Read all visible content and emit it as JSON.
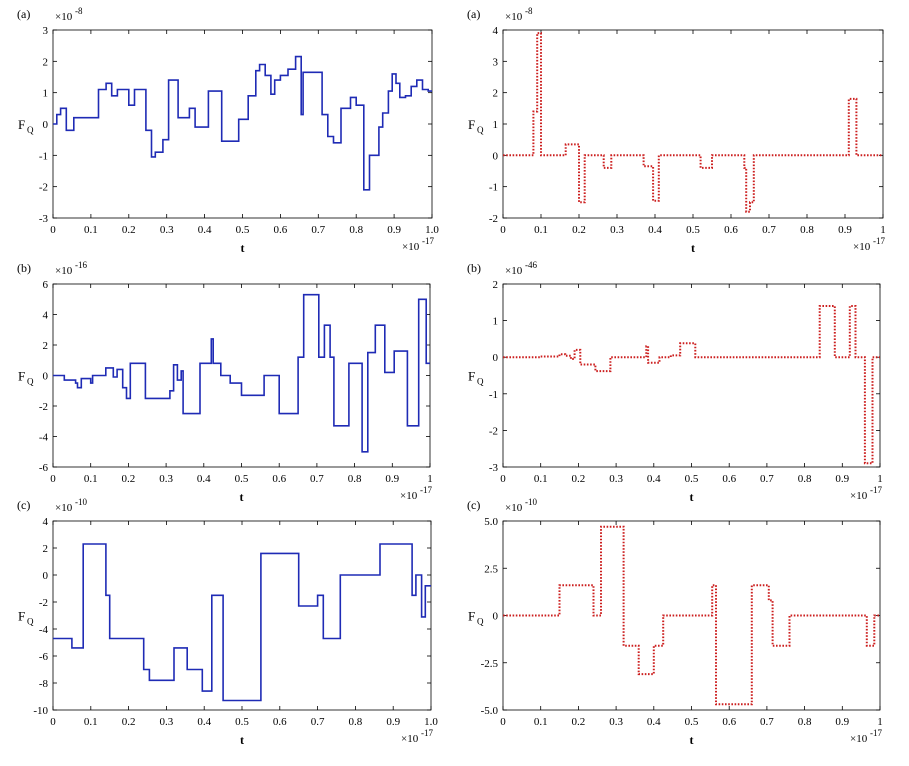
{
  "chart_data": [
    {
      "type": "line",
      "panel_label": "(a)",
      "ylabel": "F",
      "ylabel_sub": "Q",
      "xlabel": "t",
      "x_exponent": "×10",
      "x_exponent_power": "-17",
      "y_exponent": "×10",
      "y_exponent_power": "-8",
      "xlim": [
        0,
        1.0
      ],
      "ylim": [
        -3,
        3
      ],
      "xticks": [
        0,
        0.1,
        0.2,
        0.3,
        0.4,
        0.5,
        0.6,
        0.7,
        0.8,
        0.9,
        1.0
      ],
      "xtick_labels": [
        "0",
        "0.1",
        "0.2",
        "0.3",
        "0.4",
        "0.5",
        "0.6",
        "0.7",
        "0.8",
        "0.9",
        "1.0"
      ],
      "yticks": [
        -3,
        -2,
        -1,
        0,
        1,
        2,
        3
      ],
      "ytick_labels": [
        "-3",
        "-2",
        "-1",
        "0",
        "1",
        "2",
        "3"
      ],
      "line_color": "#1f2bb5",
      "line_style": "solid",
      "series": [
        {
          "name": "F_Q",
          "x": [
            0,
            0.01,
            0.02,
            0.035,
            0.055,
            0.12,
            0.14,
            0.155,
            0.17,
            0.2,
            0.215,
            0.245,
            0.26,
            0.27,
            0.29,
            0.305,
            0.33,
            0.36,
            0.375,
            0.41,
            0.445,
            0.49,
            0.515,
            0.535,
            0.545,
            0.56,
            0.575,
            0.585,
            0.6,
            0.62,
            0.64,
            0.655,
            0.66,
            0.69,
            0.71,
            0.725,
            0.74,
            0.76,
            0.785,
            0.8,
            0.82,
            0.835,
            0.86,
            0.87,
            0.885,
            0.895,
            0.905,
            0.915,
            0.93,
            0.945,
            0.96,
            0.975,
            0.99,
            1.0
          ],
          "y": [
            0,
            0.3,
            0.5,
            -0.2,
            0.2,
            1.1,
            1.3,
            0.9,
            1.1,
            0.6,
            1.1,
            -0.2,
            -1.05,
            -0.9,
            -0.5,
            1.4,
            0.2,
            0.5,
            -0.1,
            1.05,
            -0.55,
            0.15,
            0.9,
            1.7,
            1.9,
            1.55,
            0.95,
            1.4,
            1.55,
            1.75,
            2.15,
            0.3,
            1.65,
            1.65,
            0.3,
            -0.4,
            -0.6,
            0.5,
            0.85,
            0.6,
            -2.1,
            -1.0,
            -0.1,
            0.35,
            1.05,
            1.6,
            1.3,
            0.85,
            0.9,
            1.2,
            1.4,
            1.1,
            1.05,
            1.05
          ]
        }
      ]
    },
    {
      "type": "line",
      "panel_label": "(a)",
      "ylabel": "F",
      "ylabel_sub": "Q",
      "xlabel": "t",
      "x_exponent": "×10",
      "x_exponent_power": "-17",
      "y_exponent": "×10",
      "y_exponent_power": "-8",
      "xlim": [
        0,
        1.0
      ],
      "ylim": [
        -2,
        4
      ],
      "xticks": [
        0,
        0.1,
        0.2,
        0.3,
        0.4,
        0.5,
        0.6,
        0.7,
        0.8,
        0.9,
        1.0
      ],
      "xtick_labels": [
        "0",
        "0.1",
        "0.2",
        "0.3",
        "0.4",
        "0.5",
        "0.6",
        "0.7",
        "0.8",
        "0.9",
        "1"
      ],
      "yticks": [
        -2,
        -1,
        0,
        1,
        2,
        3,
        4
      ],
      "ytick_labels": [
        "-2",
        "-1",
        "0",
        "1",
        "2",
        "3",
        "4"
      ],
      "line_color": "#cc1f1f",
      "line_style": "dotted",
      "series": [
        {
          "name": "F_Q",
          "x": [
            0,
            0.08,
            0.09,
            0.1,
            0.165,
            0.2,
            0.215,
            0.265,
            0.285,
            0.37,
            0.395,
            0.41,
            0.42,
            0.52,
            0.55,
            0.635,
            0.64,
            0.65,
            0.66,
            0.91,
            0.93,
            1.0
          ],
          "y": [
            0,
            1.4,
            3.9,
            0,
            0.35,
            -1.5,
            0,
            -0.4,
            0,
            -0.35,
            -1.45,
            0,
            0,
            -0.4,
            0,
            -0.4,
            -1.8,
            -1.5,
            0,
            1.8,
            0,
            0
          ]
        }
      ]
    },
    {
      "type": "line",
      "panel_label": "(b)",
      "ylabel": "F",
      "ylabel_sub": "Q",
      "xlabel": "t",
      "x_exponent": "×10",
      "x_exponent_power": "-17",
      "y_exponent": "×10",
      "y_exponent_power": "-16",
      "xlim": [
        0,
        1.0
      ],
      "ylim": [
        -6,
        6
      ],
      "xticks": [
        0,
        0.1,
        0.2,
        0.3,
        0.4,
        0.5,
        0.6,
        0.7,
        0.8,
        0.9,
        1.0
      ],
      "xtick_labels": [
        "0",
        "0.1",
        "0.2",
        "0.3",
        "0.4",
        "0.5",
        "0.6",
        "0.7",
        "0.8",
        "0.9",
        "1"
      ],
      "yticks": [
        -6,
        -4,
        -2,
        0,
        2,
        4,
        6
      ],
      "ytick_labels": [
        "-6",
        "-4",
        "-2",
        "0",
        "2",
        "4",
        "6"
      ],
      "line_color": "#1f2bb5",
      "line_style": "solid",
      "series": [
        {
          "name": "F_Q",
          "x": [
            0,
            0.03,
            0.06,
            0.065,
            0.075,
            0.1,
            0.105,
            0.14,
            0.16,
            0.17,
            0.185,
            0.195,
            0.205,
            0.245,
            0.26,
            0.31,
            0.32,
            0.33,
            0.34,
            0.345,
            0.385,
            0.39,
            0.42,
            0.425,
            0.445,
            0.47,
            0.5,
            0.52,
            0.56,
            0.6,
            0.65,
            0.665,
            0.705,
            0.72,
            0.735,
            0.745,
            0.785,
            0.8,
            0.82,
            0.835,
            0.855,
            0.88,
            0.905,
            0.94,
            0.97,
            0.99,
            1.0
          ],
          "y": [
            0,
            -0.3,
            -0.5,
            -0.8,
            -0.2,
            -0.5,
            0,
            0.5,
            -0.1,
            0.4,
            -0.8,
            -1.5,
            0.8,
            -1.5,
            -1.5,
            -1.0,
            0.7,
            -0.3,
            0.3,
            -2.5,
            -2.5,
            0.8,
            2.4,
            0.8,
            0,
            -0.5,
            -1.3,
            -1.3,
            0,
            -2.5,
            1.2,
            5.3,
            1.2,
            3.3,
            1.2,
            -3.3,
            0.8,
            0.8,
            -5.0,
            1.5,
            3.3,
            0.2,
            1.6,
            -3.3,
            5.0,
            0.8,
            0.8
          ]
        }
      ]
    },
    {
      "type": "line",
      "panel_label": "(b)",
      "ylabel": "F",
      "ylabel_sub": "Q",
      "xlabel": "t",
      "x_exponent": "×10",
      "x_exponent_power": "-17",
      "y_exponent": "×10",
      "y_exponent_power": "-46",
      "xlim": [
        0,
        1.0
      ],
      "ylim": [
        -3,
        2
      ],
      "xticks": [
        0,
        0.1,
        0.2,
        0.3,
        0.4,
        0.5,
        0.6,
        0.7,
        0.8,
        0.9,
        1.0
      ],
      "xtick_labels": [
        "0",
        "0.1",
        "0.2",
        "0.3",
        "0.4",
        "0.5",
        "0.6",
        "0.7",
        "0.8",
        "0.9",
        "1"
      ],
      "yticks": [
        -3,
        -2,
        -1,
        0,
        1,
        2
      ],
      "ytick_labels": [
        "-3",
        "-2",
        "-1",
        "0",
        "1",
        "2"
      ],
      "line_color": "#cc1f1f",
      "line_style": "dotted",
      "series": [
        {
          "name": "F_Q",
          "x": [
            0,
            0.1,
            0.15,
            0.165,
            0.18,
            0.19,
            0.205,
            0.245,
            0.285,
            0.38,
            0.385,
            0.415,
            0.445,
            0.47,
            0.51,
            0.84,
            0.88,
            0.92,
            0.935,
            0.96,
            0.98,
            1.0
          ],
          "y": [
            0,
            0.02,
            0.08,
            0.04,
            -0.05,
            0.2,
            -0.2,
            -0.38,
            0,
            0.3,
            -0.15,
            0,
            0.05,
            0.38,
            0,
            1.4,
            0,
            1.4,
            0,
            -2.9,
            0,
            0
          ]
        }
      ]
    },
    {
      "type": "line",
      "panel_label": "(c)",
      "ylabel": "F",
      "ylabel_sub": "Q",
      "xlabel": "t",
      "x_exponent": "×10",
      "x_exponent_power": "-17",
      "y_exponent": "×10",
      "y_exponent_power": "-10",
      "xlim": [
        0,
        1.0
      ],
      "ylim": [
        -10,
        4
      ],
      "xticks": [
        0,
        0.1,
        0.2,
        0.3,
        0.4,
        0.5,
        0.6,
        0.7,
        0.8,
        0.9,
        1.0
      ],
      "xtick_labels": [
        "0",
        "0.1",
        "0.2",
        "0.3",
        "0.4",
        "0.5",
        "0.6",
        "0.7",
        "0.8",
        "0.9",
        "1.0"
      ],
      "yticks": [
        -10,
        -8,
        -6,
        -4,
        -2,
        0,
        2,
        4
      ],
      "ytick_labels": [
        "-10",
        "-8",
        "-6",
        "-4",
        "-2",
        "0",
        "2",
        "4"
      ],
      "line_color": "#1f2bb5",
      "line_style": "solid",
      "series": [
        {
          "name": "F_Q",
          "x": [
            0,
            0.05,
            0.08,
            0.14,
            0.15,
            0.24,
            0.255,
            0.32,
            0.355,
            0.395,
            0.42,
            0.45,
            0.55,
            0.65,
            0.7,
            0.715,
            0.76,
            0.855,
            0.865,
            0.95,
            0.96,
            0.975,
            0.985,
            1.0
          ],
          "y": [
            -4.7,
            -5.4,
            2.3,
            -1.5,
            -4.7,
            -7.0,
            -7.8,
            -5.4,
            -7.0,
            -8.6,
            -1.5,
            -9.3,
            1.6,
            -2.3,
            -1.5,
            -4.7,
            0,
            0,
            2.3,
            -1.5,
            0,
            -3.1,
            -0.8,
            -0.8
          ]
        }
      ]
    },
    {
      "type": "line",
      "panel_label": "(c)",
      "ylabel": "F",
      "ylabel_sub": "Q",
      "xlabel": "t",
      "x_exponent": "×10",
      "x_exponent_power": "-17",
      "y_exponent": "×10",
      "y_exponent_power": "-10",
      "xlim": [
        0,
        1.0
      ],
      "ylim": [
        -5,
        5
      ],
      "xticks": [
        0,
        0.1,
        0.2,
        0.3,
        0.4,
        0.5,
        0.6,
        0.7,
        0.8,
        0.9,
        1.0
      ],
      "xtick_labels": [
        "0",
        "0.1",
        "0.2",
        "0.3",
        "0.4",
        "0.5",
        "0.6",
        "0.7",
        "0.8",
        "0.9",
        "1"
      ],
      "yticks": [
        -5,
        -2.5,
        0,
        2.5,
        5
      ],
      "ytick_labels": [
        "-5.0",
        "-2.5",
        "0",
        "2.5",
        "5.0"
      ],
      "line_color": "#cc1f1f",
      "line_style": "dotted",
      "series": [
        {
          "name": "F_Q",
          "x": [
            0,
            0.15,
            0.24,
            0.26,
            0.32,
            0.36,
            0.4,
            0.425,
            0.555,
            0.565,
            0.66,
            0.705,
            0.715,
            0.76,
            0.965,
            0.985,
            1.0
          ],
          "y": [
            0,
            1.6,
            0,
            4.7,
            -1.6,
            -3.1,
            -1.6,
            0,
            1.6,
            -4.7,
            1.6,
            0.8,
            -1.6,
            0,
            -1.6,
            0,
            0
          ]
        }
      ]
    }
  ]
}
